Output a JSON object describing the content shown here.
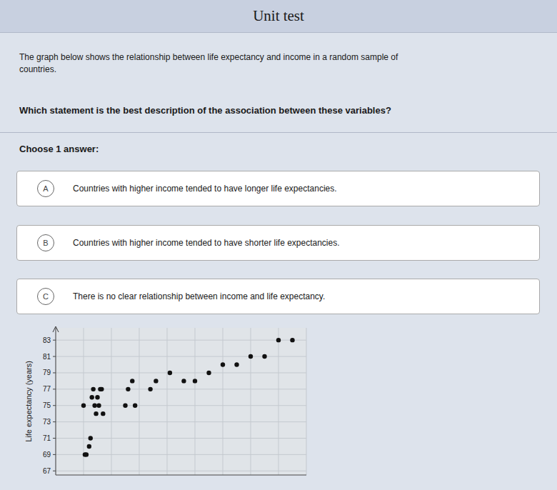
{
  "title": "Unit test",
  "question": "The graph below shows the relationship between life expectancy and income in a random sample of\ncountries.",
  "bold_question": "Which statement is the best description of the association between these variables?",
  "choose_label": "Choose 1 answer:",
  "choices": [
    {
      "label": "A",
      "text": "Countries with higher income tended to have longer life expectancies."
    },
    {
      "label": "B",
      "text": "Countries with higher income tended to have shorter life expectancies."
    },
    {
      "label": "C",
      "text": "There is no clear relationship between income and life expectancy."
    }
  ],
  "chart_data": {
    "type": "scatter",
    "x": [
      1,
      1.05,
      1.1,
      1.2,
      1.25,
      1.3,
      1.35,
      1.4,
      1.45,
      1.5,
      1.55,
      1.6,
      1.65,
      1.7,
      2.5,
      2.6,
      2.75,
      2.85,
      3.4,
      3.6,
      4.1,
      4.6,
      5.0,
      5.5,
      6.0,
      6.5,
      7.0,
      7.5,
      8.0,
      8.5
    ],
    "values": [
      75,
      69,
      69,
      70,
      71,
      76,
      77,
      75,
      74,
      76,
      75,
      77,
      77,
      74,
      75,
      77,
      78,
      75,
      77,
      78,
      79,
      78,
      78,
      79,
      80,
      80,
      81,
      81,
      83,
      83
    ],
    "ylabel": "Life expectancy (years)",
    "ylim": [
      66.5,
      84.5
    ],
    "yticks": [
      67,
      69,
      71,
      73,
      75,
      77,
      79,
      81,
      83
    ],
    "xlim": [
      0,
      9
    ],
    "xticks": [
      0,
      1,
      2,
      3,
      4,
      5,
      6,
      7,
      8,
      9
    ],
    "tick_labels": "y",
    "grid": true,
    "color": "#111111"
  }
}
